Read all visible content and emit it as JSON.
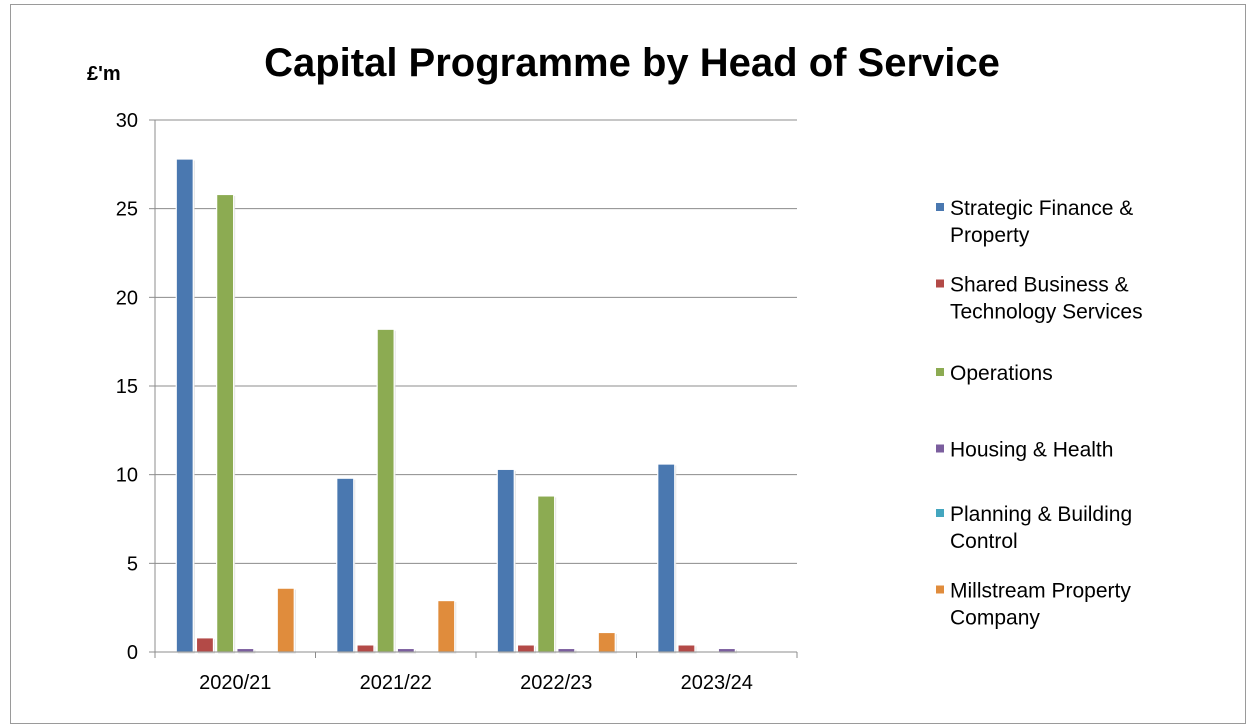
{
  "chart_data": {
    "type": "bar",
    "title": "Capital Programme by Head of Service",
    "ylabel": "£'m",
    "xlabel": "",
    "ylim": [
      0,
      30
    ],
    "yticks": [
      0,
      5,
      10,
      15,
      20,
      25,
      30
    ],
    "grid": true,
    "legend_position": "right",
    "categories": [
      "2020/21",
      "2021/22",
      "2022/23",
      "2023/24"
    ],
    "series": [
      {
        "name": "Strategic Finance & Property",
        "legend_lines": [
          "Strategic Finance &",
          "Property"
        ],
        "color": "#4a78b0",
        "values": [
          27.8,
          9.8,
          10.3,
          10.6
        ]
      },
      {
        "name": "Shared Business & Technology Services",
        "legend_lines": [
          "Shared Business &",
          "Technology Services"
        ],
        "color": "#b34a47",
        "values": [
          0.8,
          0.4,
          0.4,
          0.4
        ]
      },
      {
        "name": "Operations",
        "legend_lines": [
          "Operations"
        ],
        "color": "#8cab52",
        "values": [
          25.8,
          18.2,
          8.8,
          0
        ]
      },
      {
        "name": "Housing & Health",
        "legend_lines": [
          "Housing & Health"
        ],
        "color": "#7b5e9e",
        "values": [
          0.2,
          0.2,
          0.2,
          0.2
        ]
      },
      {
        "name": "Planning & Building Control",
        "legend_lines": [
          "Planning & Building",
          "Control"
        ],
        "color": "#44a6bf",
        "values": [
          0,
          0,
          0,
          0
        ]
      },
      {
        "name": "Millstream Property Company",
        "legend_lines": [
          "Millstream Property",
          "Company"
        ],
        "color": "#e08c3c",
        "values": [
          3.6,
          2.9,
          1.1,
          0
        ]
      }
    ]
  }
}
